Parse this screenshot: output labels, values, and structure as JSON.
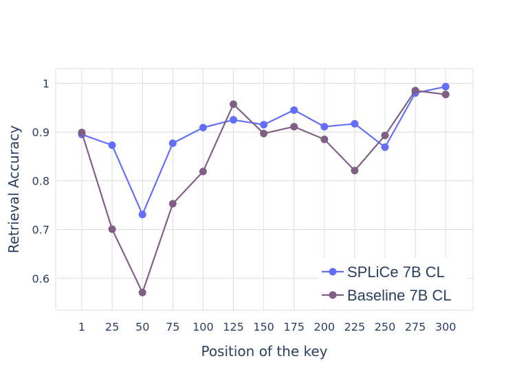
{
  "chart_data": {
    "type": "line",
    "title": "",
    "xlabel": "Position of the key",
    "ylabel": "Retrieval Accuracy",
    "categories": [
      "1",
      "25",
      "50",
      "75",
      "100",
      "125",
      "150",
      "175",
      "200",
      "225",
      "250",
      "275",
      "300"
    ],
    "ylim": [
      0.535,
      1.03
    ],
    "yticks": [
      0.6,
      0.7,
      0.8,
      0.9,
      1
    ],
    "ytick_labels": [
      "0.6",
      "0.7",
      "0.8",
      "0.9",
      "1"
    ],
    "grid": true,
    "legend_position": "bottom-right",
    "series": [
      {
        "name": "SPLiCe 7B CL",
        "color": "#636efa",
        "values": [
          0.895,
          0.873,
          0.731,
          0.877,
          0.909,
          0.925,
          0.915,
          0.945,
          0.911,
          0.917,
          0.869,
          0.98,
          0.993
        ]
      },
      {
        "name": "Baseline 7B CL",
        "color": "#7f6084",
        "values": [
          0.899,
          0.701,
          0.571,
          0.753,
          0.819,
          0.957,
          0.897,
          0.911,
          0.885,
          0.821,
          0.893,
          0.985,
          0.977
        ]
      }
    ]
  }
}
